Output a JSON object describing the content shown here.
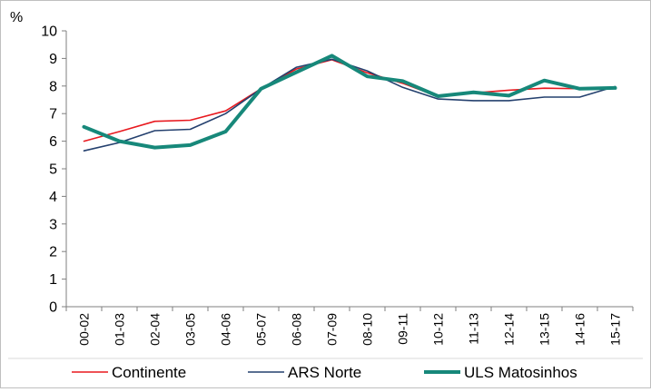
{
  "chart_data": {
    "type": "line",
    "title": "",
    "ylabel": "%",
    "xlabel": "",
    "ylim": [
      0,
      10
    ],
    "yticks": [
      "0",
      "1",
      "2",
      "3",
      "4",
      "5",
      "6",
      "7",
      "8",
      "9",
      "10"
    ],
    "grid": false,
    "legend_position": "bottom",
    "categories": [
      "00-02",
      "01-03",
      "02-04",
      "03-05",
      "04-06",
      "05-07",
      "06-08",
      "07-09",
      "08-10",
      "09-11",
      "10-12",
      "11-13",
      "12-14",
      "13-15",
      "14-16",
      "15-17"
    ],
    "series": [
      {
        "name": "Continente",
        "color": "#e8191f",
        "line_width": "thin",
        "values": [
          6.0,
          6.35,
          6.72,
          6.76,
          7.1,
          7.9,
          8.62,
          8.95,
          8.48,
          8.1,
          7.62,
          7.75,
          7.85,
          7.92,
          7.9,
          7.95
        ]
      },
      {
        "name": "ARS Norte",
        "color": "#24406e",
        "line_width": "thin",
        "values": [
          5.65,
          5.95,
          6.38,
          6.43,
          7.0,
          7.9,
          8.68,
          8.97,
          8.55,
          7.95,
          7.53,
          7.47,
          7.47,
          7.6,
          7.6,
          7.98
        ]
      },
      {
        "name": "ULS Matosinhos",
        "color": "#17887a",
        "line_width": "thick",
        "values": [
          6.52,
          6.0,
          5.77,
          5.86,
          6.35,
          7.9,
          8.5,
          9.1,
          8.35,
          8.18,
          7.63,
          7.77,
          7.65,
          8.2,
          7.9,
          7.93
        ]
      }
    ]
  }
}
